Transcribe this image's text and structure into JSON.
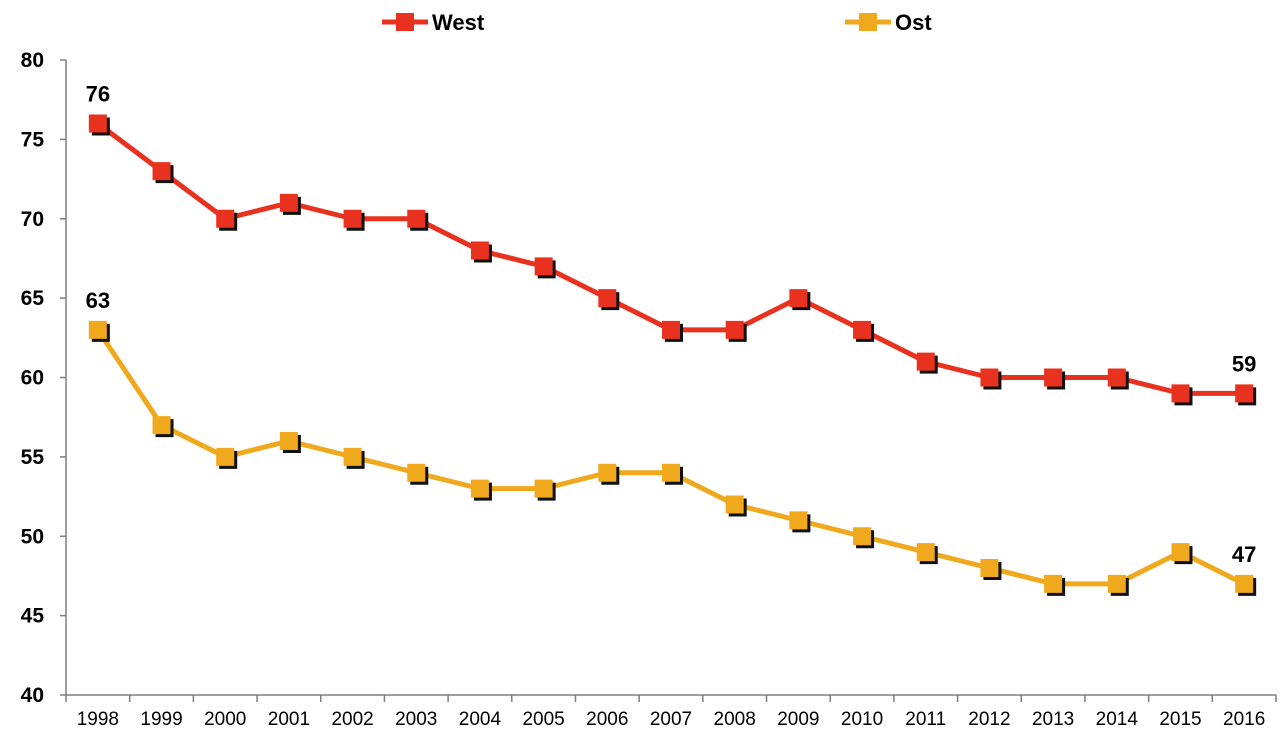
{
  "colors": {
    "west": "#e8321f",
    "ost": "#f0a81c",
    "shadow": "#111111",
    "axis": "#7f7f7f"
  },
  "chart_data": {
    "type": "line",
    "title": "",
    "xlabel": "",
    "ylabel": "",
    "categories": [
      "1998",
      "1999",
      "2000",
      "2001",
      "2002",
      "2003",
      "2004",
      "2005",
      "2006",
      "2007",
      "2008",
      "2009",
      "2010",
      "2011",
      "2012",
      "2013",
      "2014",
      "2015",
      "2016"
    ],
    "ylim": [
      40,
      80
    ],
    "yticks": [
      "40",
      "45",
      "50",
      "55",
      "60",
      "65",
      "70",
      "75",
      "80"
    ],
    "grid": false,
    "legend_position": "top",
    "series": [
      {
        "name": "West",
        "values": [
          76,
          73,
          70,
          71,
          70,
          70,
          68,
          67,
          65,
          63,
          63,
          65,
          63,
          61,
          60,
          60,
          60,
          59,
          59
        ]
      },
      {
        "name": "Ost",
        "values": [
          63,
          57,
          55,
          56,
          55,
          54,
          53,
          53,
          54,
          54,
          52,
          51,
          50,
          49,
          48,
          47,
          47,
          49,
          47
        ]
      }
    ],
    "data_labels": [
      {
        "series": "West",
        "index": 0,
        "text": "76"
      },
      {
        "series": "West",
        "index": 18,
        "text": "59"
      },
      {
        "series": "Ost",
        "index": 0,
        "text": "63"
      },
      {
        "series": "Ost",
        "index": 18,
        "text": "47"
      }
    ]
  }
}
